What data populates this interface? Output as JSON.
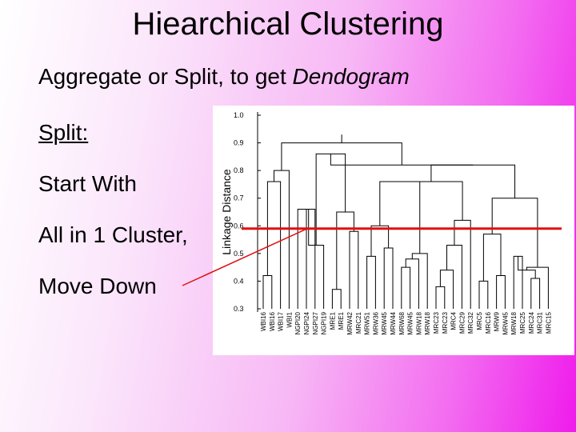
{
  "slide": {
    "title": "Hiearchical Clustering",
    "subtitle_prefix": "Aggregate or Split, to get ",
    "subtitle_emphasis": "Dendogram",
    "bullets": {
      "split": "Split:",
      "start": "Start With",
      "all": "All in 1 Cluster,",
      "move": "Move Down"
    }
  },
  "dendrogram": {
    "ylabel": "Linkage Distance",
    "y_ticks": [
      "1.0",
      "0.9",
      "0.8",
      "0.7",
      "0.6",
      "0.5",
      "0.4",
      "0.3"
    ],
    "ylim": [
      0.3,
      1.0
    ],
    "cut_level": 0.59,
    "cut_color": "#e01010",
    "leaves": [
      "WBI16",
      "WBI16",
      "WBI17",
      "WBI1",
      "NGPI20",
      "NGPI24",
      "NGPI27",
      "NGPI19",
      "MRE1",
      "MRE1",
      "MRW42",
      "MRC21",
      "MRW51",
      "MRW36",
      "MRW45",
      "MRW44",
      "MRW68",
      "MRW45",
      "MRW18",
      "MRW18",
      "MRC23",
      "MRC23",
      "MRC4",
      "MRC29",
      "MRC32",
      "MRC5",
      "MRC16",
      "MRW9",
      "MRW45",
      "MRW18",
      "MRC25",
      "MRC24",
      "MRC31",
      "MRC15"
    ]
  }
}
